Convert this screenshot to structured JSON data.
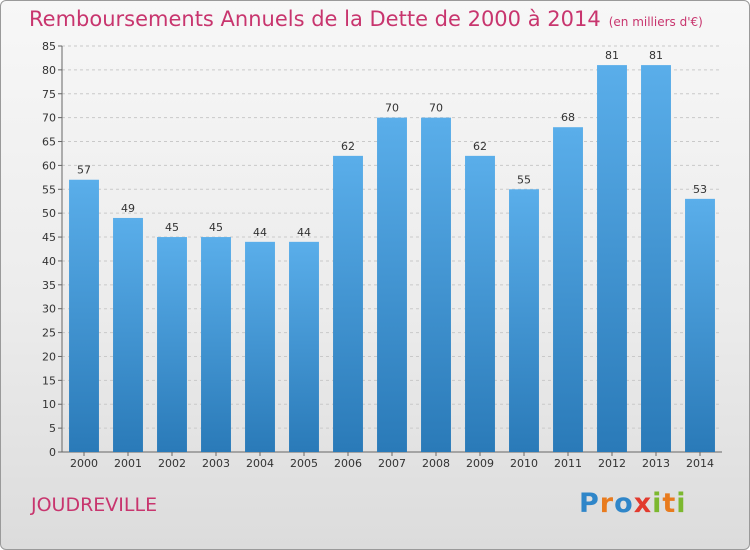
{
  "chart_data": {
    "type": "bar",
    "title": "Remboursements Annuels de la Dette de 2000 à 2014",
    "subtitle": "(en milliers d'€)",
    "categories": [
      "2000",
      "2001",
      "2002",
      "2003",
      "2004",
      "2005",
      "2006",
      "2007",
      "2008",
      "2009",
      "2010",
      "2011",
      "2012",
      "2013",
      "2014"
    ],
    "values": [
      57,
      49,
      45,
      45,
      44,
      44,
      62,
      70,
      70,
      62,
      55,
      68,
      81,
      81,
      53
    ],
    "ylim": [
      0,
      85
    ],
    "yticks": [
      0,
      5,
      10,
      15,
      20,
      25,
      30,
      35,
      40,
      45,
      50,
      55,
      60,
      65,
      70,
      75,
      80,
      85
    ],
    "xlabel": "",
    "ylabel": "",
    "grid": true,
    "bar_color": "#3d8fd1"
  },
  "footer": {
    "commune": "JOUDREVILLE",
    "brand_letters": [
      "P",
      "r",
      "o",
      "x",
      "i",
      "t",
      "i"
    ],
    "brand_colors": [
      "#2f86c9",
      "#e87b1e",
      "#2f86c9",
      "#e23a2e",
      "#7cb82f",
      "#e87b1e",
      "#7cb82f"
    ]
  }
}
